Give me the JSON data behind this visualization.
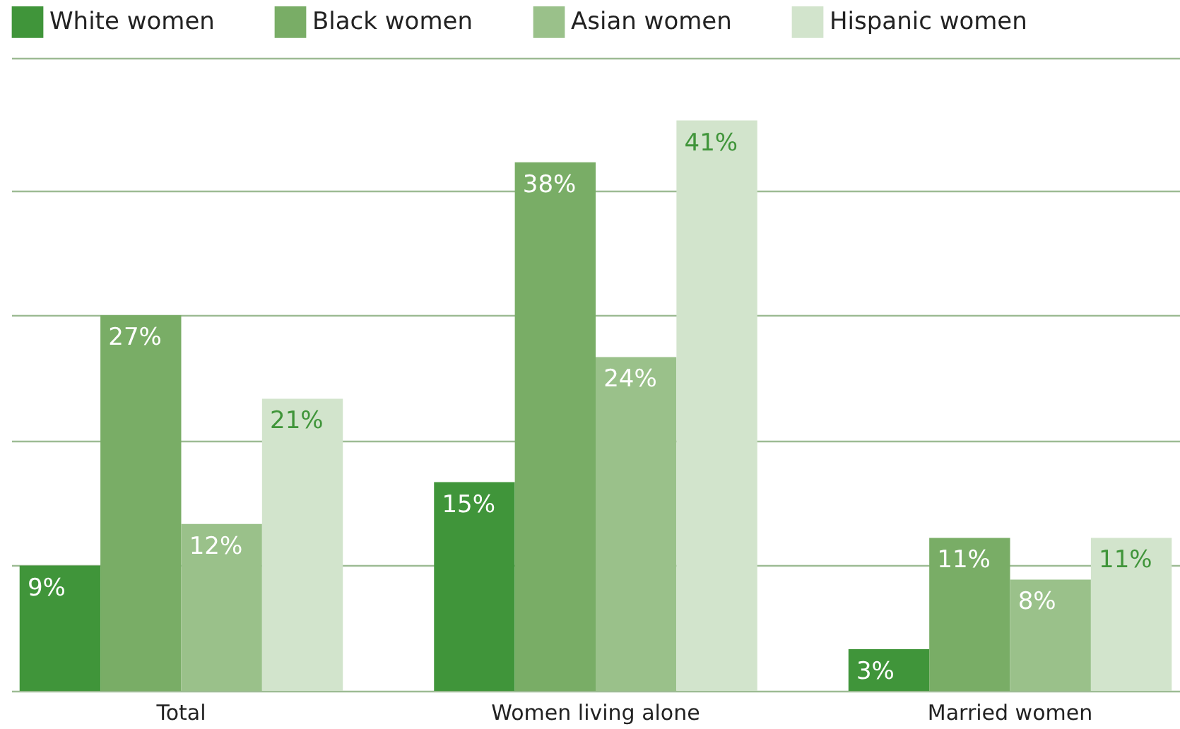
{
  "chart_data": {
    "type": "bar",
    "categories": [
      "Total",
      "Women living alone",
      "Married women"
    ],
    "series": [
      {
        "name": "White women",
        "color": "#40953a",
        "values": [
          9,
          15,
          3
        ],
        "value_labels": [
          "9%",
          "15%",
          "3%"
        ]
      },
      {
        "name": "Black women",
        "color": "#79ad66",
        "values": [
          27,
          38,
          11
        ],
        "value_labels": [
          "27%",
          "38%",
          "11%"
        ]
      },
      {
        "name": "Asian women",
        "color": "#9ac18a",
        "values": [
          12,
          24,
          8
        ],
        "value_labels": [
          "12%",
          "24%",
          "8%"
        ]
      },
      {
        "name": "Hispanic women",
        "color": "#d2e4cc",
        "values": [
          21,
          41,
          11
        ],
        "value_labels": [
          "21%",
          "41%",
          "11%"
        ]
      }
    ],
    "ylim": [
      0,
      45.5
    ],
    "yticks": [
      {
        "value": 0,
        "label": null
      },
      {
        "value": 9,
        "label": null
      },
      {
        "value": 18,
        "label": null
      },
      {
        "value": 27,
        "label": null
      },
      {
        "value": 36,
        "label": null
      },
      {
        "value": 45.5,
        "label": null
      }
    ],
    "grid": "y",
    "legend": "top left",
    "tick_labels": "x"
  }
}
